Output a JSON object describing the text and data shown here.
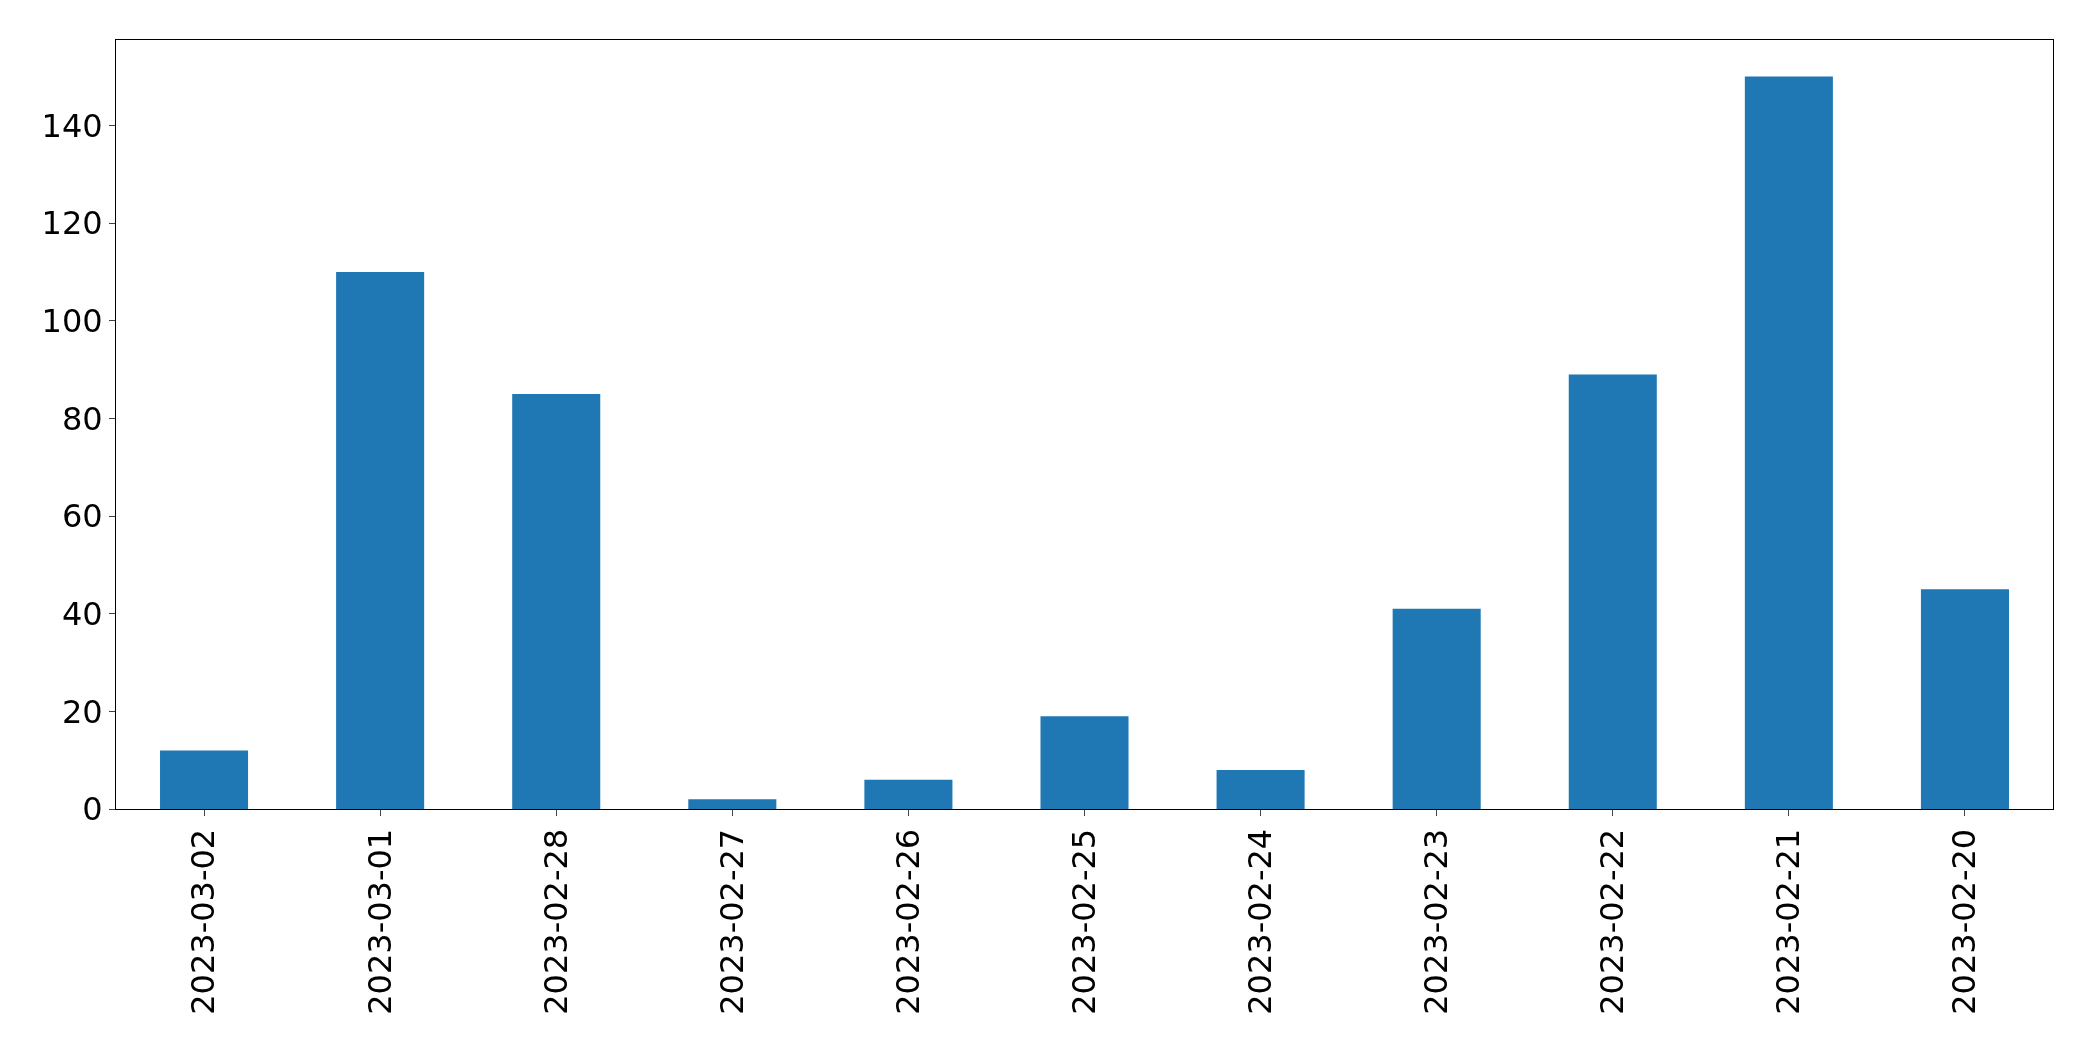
{
  "chart_data": {
    "type": "bar",
    "categories": [
      "2023-03-02",
      "2023-03-01",
      "2023-02-28",
      "2023-02-27",
      "2023-02-26",
      "2023-02-25",
      "2023-02-24",
      "2023-02-23",
      "2023-02-22",
      "2023-02-21",
      "2023-02-20"
    ],
    "values": [
      12,
      110,
      85,
      2,
      6,
      19,
      8,
      41,
      89,
      150,
      45
    ],
    "color": "#1f77b4",
    "ylim": [
      0,
      157.5
    ],
    "yticks": [
      0,
      20,
      40,
      60,
      80,
      100,
      120,
      140
    ]
  }
}
